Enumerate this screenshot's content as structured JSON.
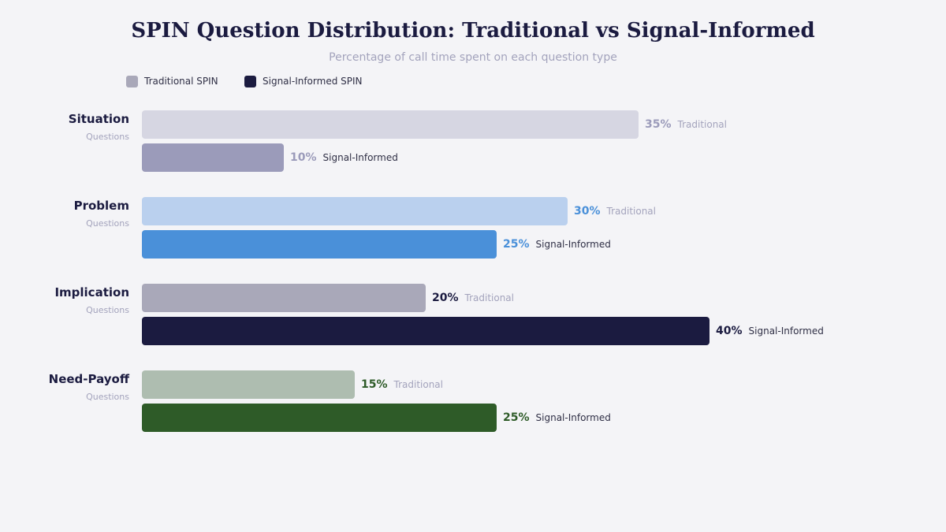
{
  "chart_data": {
    "type": "bar",
    "orientation": "horizontal",
    "title": "SPIN Question Distribution: Traditional vs Signal-Informed",
    "subtitle": "Percentage of call time spent on each question type",
    "legend_position": "top-left",
    "grid": false,
    "xlim": [
      0,
      50
    ],
    "categories": [
      {
        "name": "Situation",
        "sub": "Questions"
      },
      {
        "name": "Problem",
        "sub": "Questions"
      },
      {
        "name": "Implication",
        "sub": "Questions"
      },
      {
        "name": "Need-Payoff",
        "sub": "Questions"
      }
    ],
    "series": [
      {
        "name": "Traditional SPIN",
        "short": "Traditional",
        "values": [
          35,
          30,
          20,
          15
        ],
        "legend_color": "#a9a8b9"
      },
      {
        "name": "Signal-Informed SPIN",
        "short": "Signal-Informed",
        "values": [
          10,
          25,
          40,
          25
        ],
        "legend_color": "#1b1b40"
      }
    ],
    "bar_colors": [
      [
        "#d6d6e2",
        "#9b9bba"
      ],
      [
        "#bad0ee",
        "#4a90d9"
      ],
      [
        "#a9a8b9",
        "#1b1b40"
      ],
      [
        "#aebdb0",
        "#2e5b28"
      ]
    ],
    "value_colors": [
      [
        "#9b9bba",
        "#9b9bba"
      ],
      [
        "#4a90d9",
        "#4a90d9"
      ],
      [
        "#1b1b40",
        "#1b1b40"
      ],
      [
        "#2e5b28",
        "#2e5b28"
      ]
    ],
    "kind_colors": [
      "#a3a3bc",
      "#2f2f45"
    ]
  }
}
